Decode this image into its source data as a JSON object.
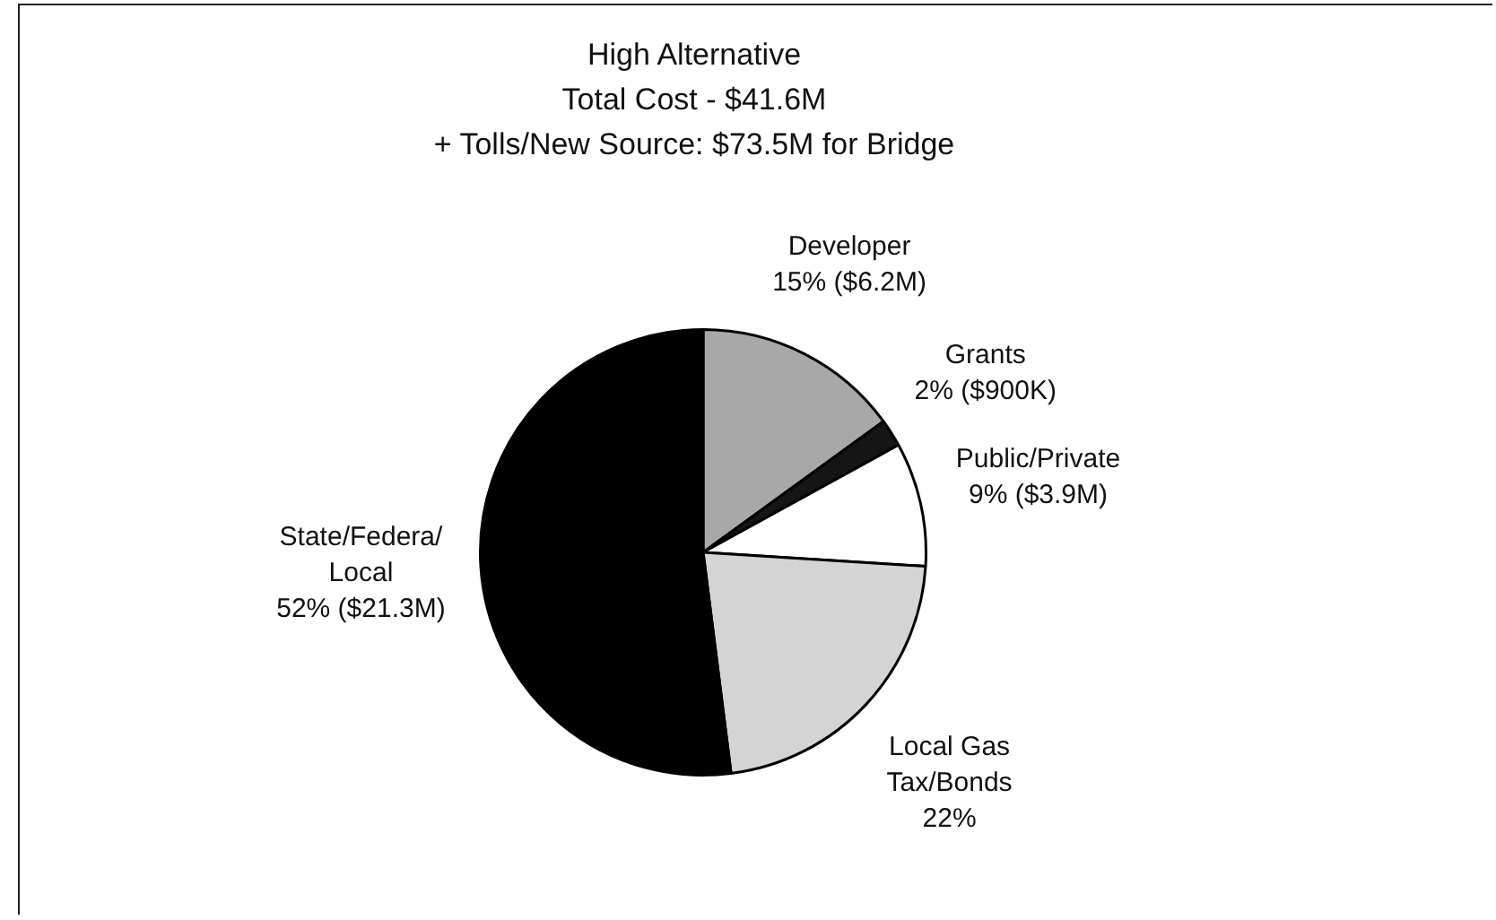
{
  "chart_data": {
    "type": "pie",
    "title": "High Alternative",
    "subtitle": "Total Cost - $41.6M",
    "annotations": [
      "+ Tolls/New Source: $73.5M for Bridge"
    ],
    "categories": [
      "Developer",
      "Grants",
      "Public/Private",
      "Local Gas Tax/Bonds",
      "State/Federa/ Local"
    ],
    "values": [
      15,
      2,
      9,
      22,
      52
    ],
    "value_labels": [
      "15% ($6.2M)",
      "2% ($900K)",
      "9% ($3.9M)",
      "22%",
      "52% ($21.3M)"
    ],
    "colors": [
      "#a8a8a8",
      "#151515",
      "#ffffff",
      "#d4d4d4",
      "#000000"
    ],
    "legend": false
  }
}
